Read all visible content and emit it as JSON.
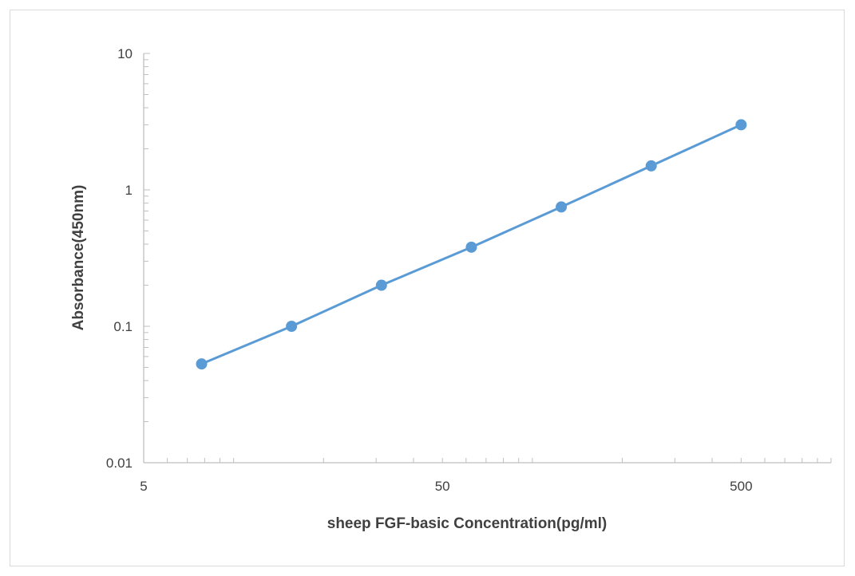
{
  "chart_data": {
    "type": "line",
    "title": "",
    "xlabel": "sheep FGF-basic Concentration(pg/ml)",
    "ylabel": "Absorbance(450nm)",
    "x_scale": "log",
    "y_scale": "log",
    "xlim": [
      5,
      1000
    ],
    "ylim": [
      0.01,
      10
    ],
    "x_ticks": [
      {
        "value": 5,
        "label": "5"
      },
      {
        "value": 50,
        "label": "50"
      },
      {
        "value": 500,
        "label": "500"
      }
    ],
    "y_ticks": [
      {
        "value": 10,
        "label": "10"
      },
      {
        "value": 1,
        "label": "1"
      },
      {
        "value": 0.1,
        "label": "0.1"
      },
      {
        "value": 0.01,
        "label": "0.01"
      }
    ],
    "grid": false,
    "legend": "none",
    "series": [
      {
        "color": "#5b9bd5",
        "x": [
          7.8125,
          15.625,
          31.25,
          62.5,
          125,
          250,
          500
        ],
        "y": [
          0.053,
          0.1,
          0.2,
          0.38,
          0.75,
          1.5,
          3.0
        ]
      }
    ]
  }
}
